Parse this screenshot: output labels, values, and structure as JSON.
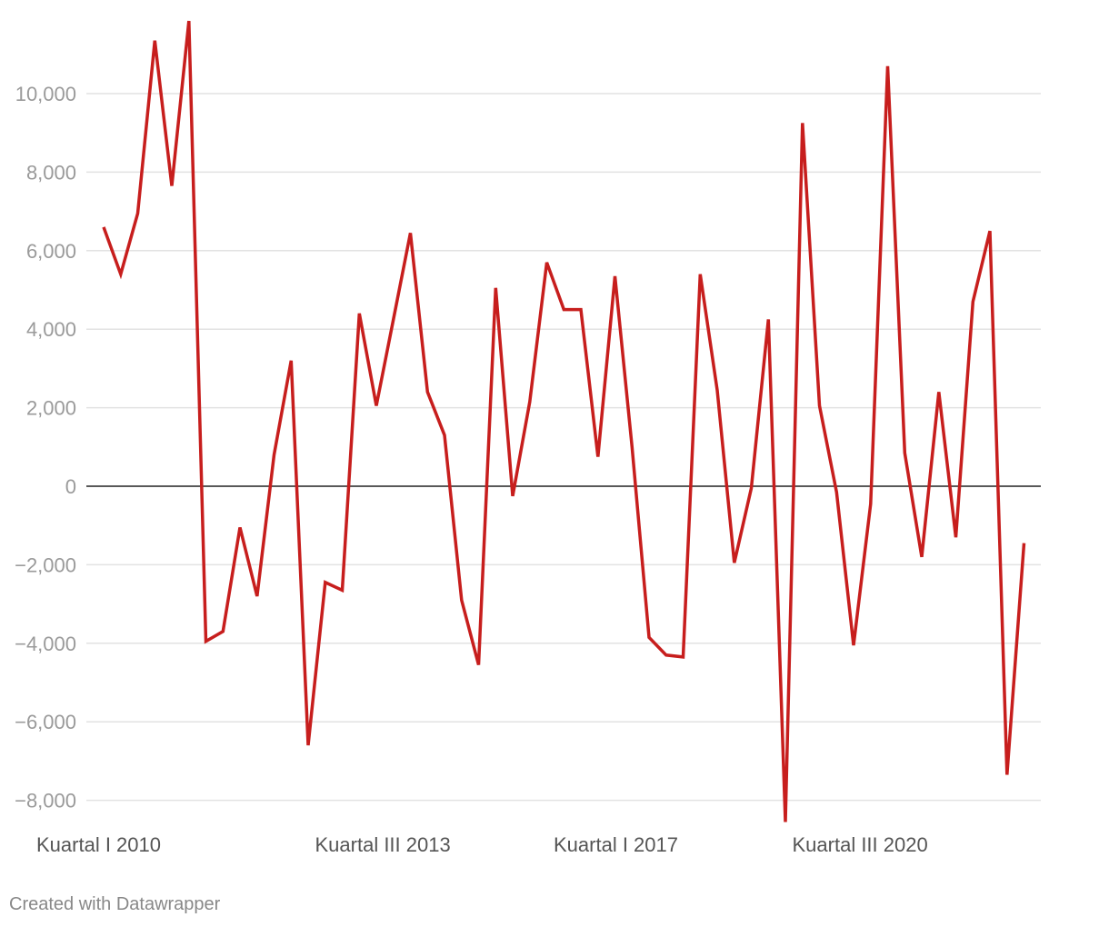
{
  "chart_data": {
    "type": "line",
    "title": "",
    "xlabel": "",
    "ylabel": "",
    "ylim": [
      -8500,
      11800
    ],
    "y_ticks": [
      10000,
      8000,
      6000,
      4000,
      2000,
      0,
      -2000,
      -4000,
      -6000,
      -8000
    ],
    "y_tick_labels": [
      "10,000",
      "8,000",
      "6,000",
      "4,000",
      "2,000",
      "0",
      "−2,000",
      "−4,000",
      "−6,000",
      "−8,000"
    ],
    "x_tick_labels": [
      {
        "index": 0,
        "label": "Kuartal I 2010"
      },
      {
        "index": 14,
        "label": "Kuartal III 2013"
      },
      {
        "index": 28,
        "label": "Kuartal I 2017"
      },
      {
        "index": 42,
        "label": "Kuartal III 2020"
      }
    ],
    "grid": true,
    "legend": "none",
    "line_color": "#c71e1d",
    "series": [
      {
        "values": [
          6600,
          5400,
          6950,
          11350,
          7650,
          11850,
          -3950,
          -3700,
          -1050,
          -2800,
          800,
          3200,
          -6600,
          -2450,
          -2650,
          4400,
          2050,
          4250,
          6450,
          2400,
          1300,
          -2900,
          -4550,
          5050,
          -250,
          2150,
          5700,
          4500,
          4500,
          750,
          5350,
          1000,
          -3850,
          -4300,
          -4350,
          5400,
          2450,
          -1950,
          -50,
          4250,
          -8550,
          9250,
          2050,
          -150,
          -4050,
          -450,
          10700,
          850,
          -1800,
          2400,
          -1300,
          4700,
          6500,
          -7350,
          -1450
        ]
      }
    ]
  },
  "credit": "Created with Datawrapper"
}
